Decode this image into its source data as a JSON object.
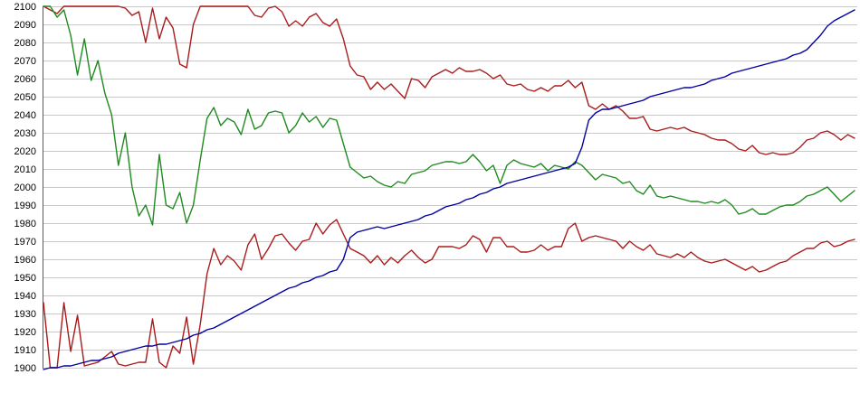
{
  "chart_data": {
    "type": "line",
    "title": "",
    "xlabel": "",
    "ylabel": "",
    "legend": "none",
    "grid": "horizontal",
    "x_axis": {
      "labels_visible": false,
      "points_per_series": 120
    },
    "y_axis": {
      "min": 1900,
      "max": 2100,
      "tick_step": 10,
      "ticks": [
        2100,
        2090,
        2080,
        2070,
        2060,
        2050,
        2040,
        2030,
        2020,
        2010,
        2000,
        1990,
        1980,
        1970,
        1960,
        1950,
        1940,
        1930,
        1920,
        1910,
        1900
      ]
    },
    "colors": {
      "background": "#ffffff",
      "grid": "#c9c9c9",
      "axis": "#5a5a5a",
      "label_text": "#000000",
      "upper_red": "#a81c1c",
      "green": "#1f8a1f",
      "lower_red": "#ab1a1a",
      "blue": "#0000a0"
    },
    "series": [
      {
        "name": "upper-red",
        "color": "#a81c1c",
        "values": [
          2100,
          2098,
          2096,
          2100,
          2100,
          2100,
          2100,
          2100,
          2100,
          2100,
          2100,
          2100,
          2099,
          2095,
          2097,
          2080,
          2099,
          2082,
          2094,
          2088,
          2068,
          2066,
          2090,
          2100,
          2100,
          2100,
          2100,
          2100,
          2100,
          2100,
          2100,
          2095,
          2094,
          2099,
          2100,
          2097,
          2089,
          2092,
          2089,
          2094,
          2096,
          2091,
          2089,
          2093,
          2082,
          2067,
          2062,
          2061,
          2054,
          2058,
          2054,
          2057,
          2053,
          2049,
          2060,
          2059,
          2055,
          2061,
          2063,
          2065,
          2063,
          2066,
          2064,
          2064,
          2065,
          2063,
          2060,
          2062,
          2057,
          2056,
          2057,
          2054,
          2053,
          2055,
          2053,
          2056,
          2056,
          2059,
          2055,
          2058,
          2045,
          2043,
          2046,
          2043,
          2045,
          2042,
          2038,
          2038,
          2039,
          2032,
          2031,
          2032,
          2033,
          2032,
          2033,
          2031,
          2030,
          2029,
          2027,
          2026,
          2026,
          2024,
          2021,
          2020,
          2023,
          2019,
          2018,
          2019,
          2018,
          2018,
          2019,
          2022,
          2026,
          2027,
          2030,
          2031,
          2029,
          2026,
          2029,
          2027
        ]
      },
      {
        "name": "green",
        "color": "#1f8a1f",
        "values": [
          2100,
          2100,
          2094,
          2098,
          2084,
          2062,
          2082,
          2059,
          2070,
          2052,
          2040,
          2012,
          2030,
          2000,
          1984,
          1990,
          1979,
          2018,
          1990,
          1988,
          1997,
          1980,
          1990,
          2015,
          2038,
          2044,
          2034,
          2038,
          2036,
          2029,
          2043,
          2032,
          2034,
          2041,
          2042,
          2041,
          2030,
          2034,
          2041,
          2036,
          2039,
          2033,
          2038,
          2037,
          2024,
          2011,
          2008,
          2005,
          2006,
          2003,
          2001,
          2000,
          2003,
          2002,
          2007,
          2008,
          2009,
          2012,
          2013,
          2014,
          2014,
          2013,
          2014,
          2018,
          2014,
          2009,
          2012,
          2002,
          2012,
          2015,
          2013,
          2012,
          2011,
          2013,
          2009,
          2012,
          2011,
          2010,
          2014,
          2012,
          2008,
          2004,
          2007,
          2006,
          2005,
          2002,
          2003,
          1998,
          1996,
          2001,
          1995,
          1994,
          1995,
          1994,
          1993,
          1992,
          1992,
          1991,
          1992,
          1991,
          1993,
          1990,
          1985,
          1986,
          1988,
          1985,
          1985,
          1987,
          1989,
          1990,
          1990,
          1992,
          1995,
          1996,
          1998,
          2000,
          1996,
          1992,
          1995,
          1998
        ]
      },
      {
        "name": "lower-red",
        "color": "#ab1a1a",
        "values": [
          1936,
          1900,
          1900,
          1936,
          1909,
          1929,
          1901,
          1902,
          1903,
          1906,
          1909,
          1902,
          1901,
          1902,
          1903,
          1903,
          1927,
          1903,
          1900,
          1912,
          1908,
          1928,
          1902,
          1924,
          1952,
          1966,
          1957,
          1962,
          1959,
          1954,
          1968,
          1974,
          1960,
          1966,
          1973,
          1974,
          1969,
          1965,
          1970,
          1971,
          1980,
          1974,
          1979,
          1982,
          1974,
          1966,
          1964,
          1962,
          1958,
          1962,
          1957,
          1961,
          1958,
          1962,
          1965,
          1961,
          1958,
          1960,
          1967,
          1967,
          1967,
          1966,
          1968,
          1973,
          1971,
          1964,
          1972,
          1972,
          1967,
          1967,
          1964,
          1964,
          1965,
          1968,
          1965,
          1967,
          1967,
          1977,
          1980,
          1970,
          1972,
          1973,
          1972,
          1971,
          1970,
          1966,
          1970,
          1967,
          1965,
          1968,
          1963,
          1962,
          1961,
          1963,
          1961,
          1964,
          1961,
          1959,
          1958,
          1959,
          1960,
          1958,
          1956,
          1954,
          1956,
          1953,
          1954,
          1956,
          1958,
          1959,
          1962,
          1964,
          1966,
          1966,
          1969,
          1970,
          1967,
          1968,
          1970,
          1971
        ]
      },
      {
        "name": "blue",
        "color": "#0000a0",
        "values": [
          1899,
          1900,
          1900,
          1901,
          1901,
          1902,
          1903,
          1904,
          1904,
          1905,
          1906,
          1908,
          1909,
          1910,
          1911,
          1912,
          1912,
          1913,
          1913,
          1914,
          1915,
          1916,
          1918,
          1919,
          1921,
          1922,
          1924,
          1926,
          1928,
          1930,
          1932,
          1934,
          1936,
          1938,
          1940,
          1942,
          1944,
          1945,
          1947,
          1948,
          1950,
          1951,
          1953,
          1954,
          1960,
          1972,
          1975,
          1976,
          1977,
          1978,
          1977,
          1978,
          1979,
          1980,
          1981,
          1982,
          1984,
          1985,
          1987,
          1989,
          1990,
          1991,
          1993,
          1994,
          1996,
          1997,
          1999,
          2000,
          2002,
          2003,
          2004,
          2005,
          2006,
          2007,
          2008,
          2009,
          2010,
          2011,
          2013,
          2022,
          2037,
          2041,
          2043,
          2043,
          2044,
          2045,
          2046,
          2047,
          2048,
          2050,
          2051,
          2052,
          2053,
          2054,
          2055,
          2055,
          2056,
          2057,
          2059,
          2060,
          2061,
          2063,
          2064,
          2065,
          2066,
          2067,
          2068,
          2069,
          2070,
          2071,
          2073,
          2074,
          2076,
          2080,
          2084,
          2089,
          2092,
          2094,
          2096,
          2098
        ]
      }
    ]
  }
}
